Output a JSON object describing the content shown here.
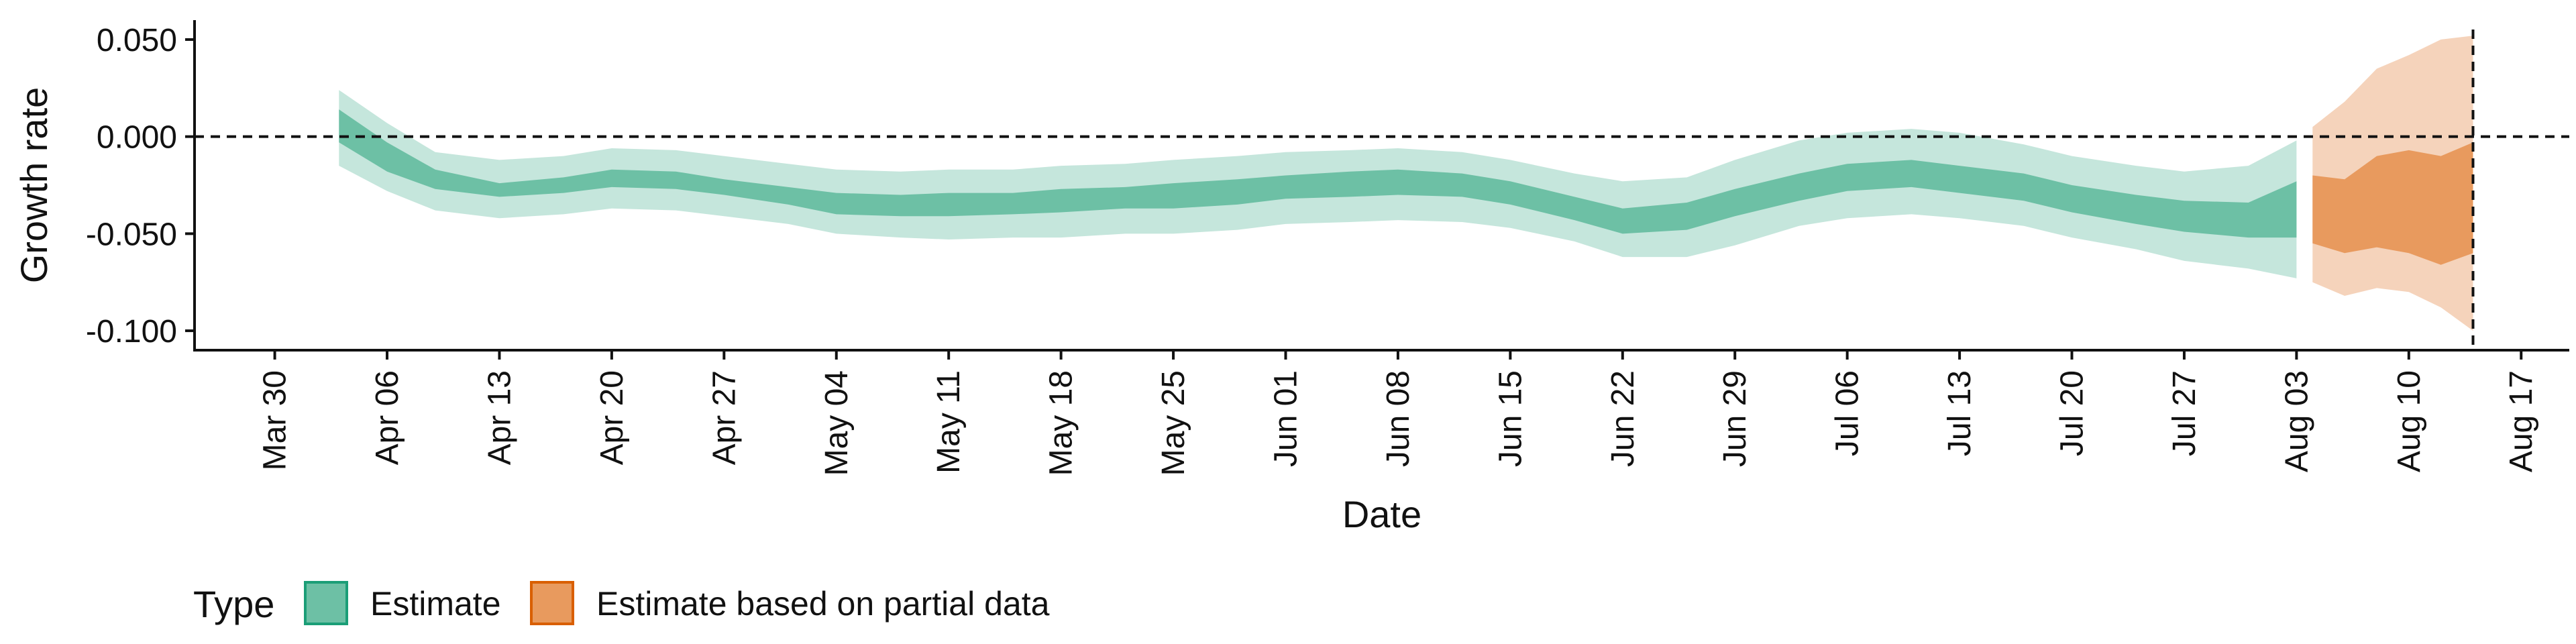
{
  "chart_data": {
    "type": "area",
    "xlabel": "Date",
    "ylabel": "Growth rate",
    "ylim": [
      -0.11,
      0.06
    ],
    "xlim": [
      "2020-03-25",
      "2020-08-20"
    ],
    "y_ticks": [
      0.05,
      0.0,
      -0.05,
      -0.1
    ],
    "y_tick_labels": [
      "0.050",
      "0.000",
      "-0.050",
      "-0.100"
    ],
    "x_ticks": [
      "2020-03-30",
      "2020-04-06",
      "2020-04-13",
      "2020-04-20",
      "2020-04-27",
      "2020-05-04",
      "2020-05-11",
      "2020-05-18",
      "2020-05-25",
      "2020-06-01",
      "2020-06-08",
      "2020-06-15",
      "2020-06-22",
      "2020-06-29",
      "2020-07-06",
      "2020-07-13",
      "2020-07-20",
      "2020-07-27",
      "2020-08-03",
      "2020-08-10",
      "2020-08-17"
    ],
    "x_tick_labels": [
      "Mar 30",
      "Apr 06",
      "Apr 13",
      "Apr 20",
      "Apr 27",
      "May 04",
      "May 11",
      "May 18",
      "May 25",
      "Jun 01",
      "Jun 08",
      "Jun 15",
      "Jun 22",
      "Jun 29",
      "Jul 06",
      "Jul 13",
      "Jul 20",
      "Jul 27",
      "Aug 03",
      "Aug 10",
      "Aug 17"
    ],
    "hline": 0.0,
    "vline": "2020-08-14",
    "grid": false,
    "legend": {
      "title": "Type",
      "position": "bottom-left",
      "entries": [
        {
          "label": "Estimate",
          "fill": "#6dc0a5",
          "stroke": "#1b9e77"
        },
        {
          "label": "Estimate based on partial data",
          "fill": "#e89a5e",
          "stroke": "#d95f02"
        }
      ]
    },
    "colors": {
      "estimate_inner": "#6dc0a5",
      "estimate_outer": "#c5e6dc",
      "partial_inner": "#e89a5e",
      "partial_outer": "#f5d3bb",
      "axis": "#111111"
    },
    "series": [
      {
        "name": "Estimate",
        "dates": [
          "2020-04-03",
          "2020-04-06",
          "2020-04-09",
          "2020-04-13",
          "2020-04-17",
          "2020-04-20",
          "2020-04-24",
          "2020-04-27",
          "2020-05-01",
          "2020-05-04",
          "2020-05-08",
          "2020-05-11",
          "2020-05-15",
          "2020-05-18",
          "2020-05-22",
          "2020-05-25",
          "2020-05-29",
          "2020-06-01",
          "2020-06-05",
          "2020-06-08",
          "2020-06-12",
          "2020-06-15",
          "2020-06-19",
          "2020-06-22",
          "2020-06-26",
          "2020-06-29",
          "2020-07-03",
          "2020-07-06",
          "2020-07-10",
          "2020-07-13",
          "2020-07-17",
          "2020-07-20",
          "2020-07-24",
          "2020-07-27",
          "2020-07-31",
          "2020-08-03"
        ],
        "lower_90": [
          -0.015,
          -0.028,
          -0.038,
          -0.042,
          -0.04,
          -0.037,
          -0.038,
          -0.041,
          -0.045,
          -0.05,
          -0.052,
          -0.053,
          -0.052,
          -0.052,
          -0.05,
          -0.05,
          -0.048,
          -0.045,
          -0.044,
          -0.043,
          -0.044,
          -0.047,
          -0.054,
          -0.062,
          -0.062,
          -0.056,
          -0.046,
          -0.042,
          -0.04,
          -0.042,
          -0.046,
          -0.052,
          -0.058,
          -0.064,
          -0.068,
          -0.073
        ],
        "lower_50": [
          -0.003,
          -0.018,
          -0.027,
          -0.031,
          -0.029,
          -0.026,
          -0.027,
          -0.03,
          -0.035,
          -0.04,
          -0.041,
          -0.041,
          -0.04,
          -0.039,
          -0.037,
          -0.037,
          -0.035,
          -0.032,
          -0.031,
          -0.03,
          -0.031,
          -0.035,
          -0.043,
          -0.05,
          -0.048,
          -0.041,
          -0.033,
          -0.028,
          -0.026,
          -0.029,
          -0.033,
          -0.039,
          -0.045,
          -0.049,
          -0.052,
          -0.052
        ],
        "upper_50": [
          0.014,
          -0.003,
          -0.017,
          -0.024,
          -0.021,
          -0.017,
          -0.018,
          -0.022,
          -0.026,
          -0.029,
          -0.03,
          -0.029,
          -0.029,
          -0.027,
          -0.026,
          -0.024,
          -0.022,
          -0.02,
          -0.018,
          -0.017,
          -0.019,
          -0.023,
          -0.031,
          -0.037,
          -0.034,
          -0.027,
          -0.019,
          -0.014,
          -0.012,
          -0.015,
          -0.019,
          -0.025,
          -0.03,
          -0.033,
          -0.034,
          -0.023
        ],
        "upper_90": [
          0.024,
          0.007,
          -0.008,
          -0.012,
          -0.01,
          -0.006,
          -0.007,
          -0.01,
          -0.014,
          -0.017,
          -0.018,
          -0.017,
          -0.017,
          -0.015,
          -0.014,
          -0.012,
          -0.01,
          -0.008,
          -0.007,
          -0.006,
          -0.008,
          -0.012,
          -0.019,
          -0.023,
          -0.021,
          -0.012,
          -0.002,
          0.002,
          0.004,
          0.002,
          -0.004,
          -0.01,
          -0.015,
          -0.018,
          -0.015,
          -0.002
        ]
      },
      {
        "name": "Estimate based on partial data",
        "dates": [
          "2020-08-04",
          "2020-08-06",
          "2020-08-08",
          "2020-08-10",
          "2020-08-12",
          "2020-08-14"
        ],
        "lower_90": [
          -0.075,
          -0.082,
          -0.078,
          -0.08,
          -0.088,
          -0.1
        ],
        "lower_50": [
          -0.055,
          -0.06,
          -0.057,
          -0.06,
          -0.066,
          -0.06
        ],
        "upper_50": [
          -0.02,
          -0.022,
          -0.01,
          -0.007,
          -0.01,
          -0.003
        ],
        "upper_90": [
          0.005,
          0.018,
          0.035,
          0.042,
          0.05,
          0.052
        ]
      }
    ]
  }
}
